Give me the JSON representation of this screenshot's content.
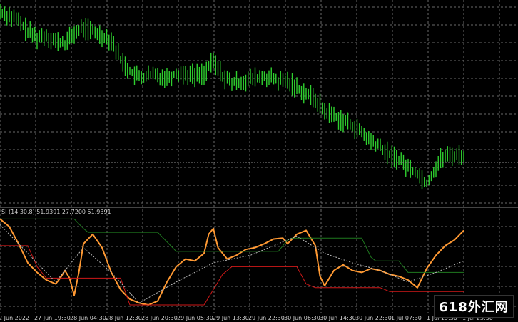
{
  "indicator": {
    "label": "SI (14,30,8) 51.9391 27.7200 51.9391"
  },
  "time_axis": {
    "labels": [
      "2 Jun 2022",
      "27 Jun 19:30",
      "28 Jun 04:30",
      "28 Jun 12:30",
      "28 Jun 20:30",
      "29 Jun 05:30",
      "29 Jun 13:30",
      "29 Jun 22:30",
      "30 Jun 06:30",
      "30 Jun 14:30",
      "30 Jun 22:30",
      "1 Jul 07:30",
      "1 Jul 15:30",
      "1 Jul 23:30"
    ]
  },
  "watermark": {
    "text": "618外汇网"
  },
  "colors": {
    "background": "#000000",
    "grid": "#6a6a6a",
    "candles": "#2fd02f",
    "oscillator": "#ff9933",
    "upper_band": "#1f7a1f",
    "lower_band": "#d01818",
    "signal": "#bbbbbb",
    "separator": "#888888"
  },
  "chart_data": [
    {
      "type": "line",
      "name_hint": "price-chart",
      "x_range": [
        0,
        100
      ],
      "y_range": [
        0,
        100
      ],
      "closes": [
        [
          0,
          96
        ],
        [
          2,
          94
        ],
        [
          4,
          91
        ],
        [
          6,
          86
        ],
        [
          8,
          83
        ],
        [
          10,
          84
        ],
        [
          12,
          81
        ],
        [
          14,
          80
        ],
        [
          16,
          85
        ],
        [
          18,
          88
        ],
        [
          20,
          86
        ],
        [
          22,
          84
        ],
        [
          24,
          82
        ],
        [
          26,
          72
        ],
        [
          28,
          66
        ],
        [
          30,
          63
        ],
        [
          32,
          64
        ],
        [
          34,
          64
        ],
        [
          36,
          63
        ],
        [
          38,
          65
        ],
        [
          40,
          65
        ],
        [
          42,
          64
        ],
        [
          44,
          65
        ],
        [
          46,
          71
        ],
        [
          48,
          64
        ],
        [
          50,
          60
        ],
        [
          52,
          61
        ],
        [
          54,
          62
        ],
        [
          56,
          63
        ],
        [
          58,
          63
        ],
        [
          60,
          61
        ],
        [
          62,
          61
        ],
        [
          64,
          58
        ],
        [
          66,
          55
        ],
        [
          68,
          52
        ],
        [
          70,
          46
        ],
        [
          72,
          44
        ],
        [
          74,
          41
        ],
        [
          76,
          39
        ],
        [
          78,
          35
        ],
        [
          80,
          31
        ],
        [
          82,
          28
        ],
        [
          84,
          24
        ],
        [
          86,
          22
        ],
        [
          88,
          18
        ],
        [
          90,
          15
        ],
        [
          92,
          10
        ],
        [
          93,
          14
        ],
        [
          95,
          22
        ],
        [
          97,
          24
        ],
        [
          100,
          24
        ]
      ]
    },
    {
      "type": "line",
      "name_hint": "oscillator",
      "x_range": [
        0,
        100
      ],
      "y_range": [
        0,
        100
      ],
      "series": [
        {
          "key": "oscillator",
          "points": [
            [
              0,
              96
            ],
            [
              2,
              88
            ],
            [
              4,
              70
            ],
            [
              6,
              50
            ],
            [
              8,
              40
            ],
            [
              10,
              32
            ],
            [
              12,
              28
            ],
            [
              13,
              34
            ],
            [
              14,
              42
            ],
            [
              15,
              34
            ],
            [
              16,
              16
            ],
            [
              17,
              40
            ],
            [
              18,
              70
            ],
            [
              20,
              80
            ],
            [
              22,
              66
            ],
            [
              24,
              40
            ],
            [
              26,
              22
            ],
            [
              28,
              12
            ],
            [
              30,
              8
            ],
            [
              32,
              6
            ],
            [
              34,
              10
            ],
            [
              36,
              30
            ],
            [
              38,
              46
            ],
            [
              40,
              54
            ],
            [
              42,
              52
            ],
            [
              44,
              60
            ],
            [
              45,
              80
            ],
            [
              46,
              86
            ],
            [
              47,
              66
            ],
            [
              49,
              54
            ],
            [
              51,
              58
            ],
            [
              53,
              64
            ],
            [
              55,
              66
            ],
            [
              57,
              70
            ],
            [
              59,
              75
            ],
            [
              61,
              76
            ],
            [
              62,
              70
            ],
            [
              64,
              80
            ],
            [
              66,
              84
            ],
            [
              68,
              68
            ],
            [
              69,
              36
            ],
            [
              70,
              26
            ],
            [
              72,
              42
            ],
            [
              74,
              48
            ],
            [
              76,
              42
            ],
            [
              78,
              40
            ],
            [
              80,
              44
            ],
            [
              82,
              42
            ],
            [
              84,
              38
            ],
            [
              86,
              36
            ],
            [
              88,
              32
            ],
            [
              90,
              24
            ],
            [
              92,
              44
            ],
            [
              94,
              58
            ],
            [
              96,
              68
            ],
            [
              98,
              74
            ],
            [
              100,
              84
            ]
          ]
        },
        {
          "key": "upper_band",
          "points": [
            [
              0,
              96
            ],
            [
              16,
              96
            ],
            [
              18,
              86
            ],
            [
              19,
              82
            ],
            [
              34,
              82
            ],
            [
              36,
              72
            ],
            [
              38,
              62
            ],
            [
              40,
              62
            ],
            [
              60,
              62
            ],
            [
              62,
              74
            ],
            [
              63,
              76
            ],
            [
              78,
              76
            ],
            [
              80,
              56
            ],
            [
              81,
              52
            ],
            [
              86,
              52
            ],
            [
              88,
              40
            ],
            [
              100,
              40
            ]
          ]
        },
        {
          "key": "lower_band",
          "points": [
            [
              0,
              68
            ],
            [
              6,
              68
            ],
            [
              8,
              46
            ],
            [
              10,
              34
            ],
            [
              26,
              34
            ],
            [
              28,
              6
            ],
            [
              44,
              6
            ],
            [
              46,
              22
            ],
            [
              48,
              38
            ],
            [
              50,
              46
            ],
            [
              64,
              46
            ],
            [
              66,
              28
            ],
            [
              68,
              24
            ],
            [
              82,
              24
            ],
            [
              84,
              20
            ],
            [
              100,
              20
            ]
          ]
        },
        {
          "key": "signal",
          "points": [
            [
              0,
              90
            ],
            [
              6,
              60
            ],
            [
              12,
              30
            ],
            [
              18,
              66
            ],
            [
              24,
              40
            ],
            [
              30,
              8
            ],
            [
              38,
              30
            ],
            [
              46,
              50
            ],
            [
              54,
              58
            ],
            [
              60,
              70
            ],
            [
              64,
              78
            ],
            [
              70,
              60
            ],
            [
              76,
              50
            ],
            [
              82,
              42
            ],
            [
              88,
              30
            ],
            [
              94,
              40
            ],
            [
              100,
              52
            ]
          ]
        }
      ]
    }
  ]
}
